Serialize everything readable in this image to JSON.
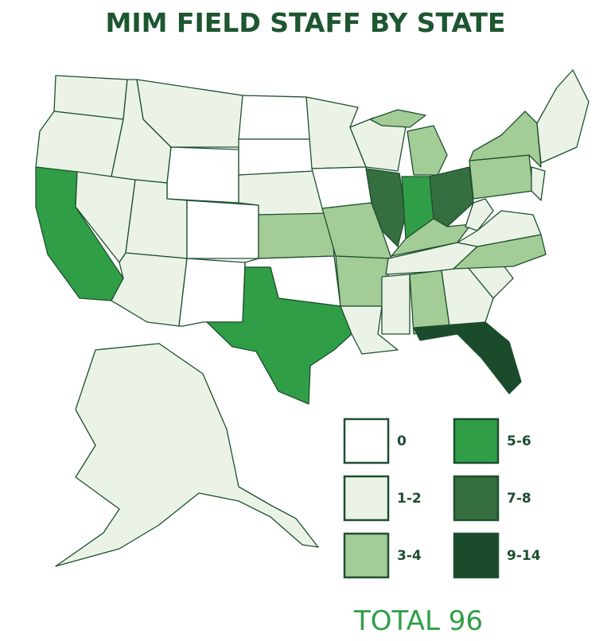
{
  "title": "MIM FIELD STAFF BY STATE",
  "legend": [
    {
      "label": "0",
      "color": "#ffffff"
    },
    {
      "label": "1-2",
      "color": "#ebf3e7"
    },
    {
      "label": "3-4",
      "color": "#a3cc96"
    },
    {
      "label": "5-6",
      "color": "#2f9e47"
    },
    {
      "label": "7-8",
      "color": "#356e3f"
    },
    {
      "label": "9-14",
      "color": "#1a4b2b"
    }
  ],
  "total": "TOTAL 96"
}
